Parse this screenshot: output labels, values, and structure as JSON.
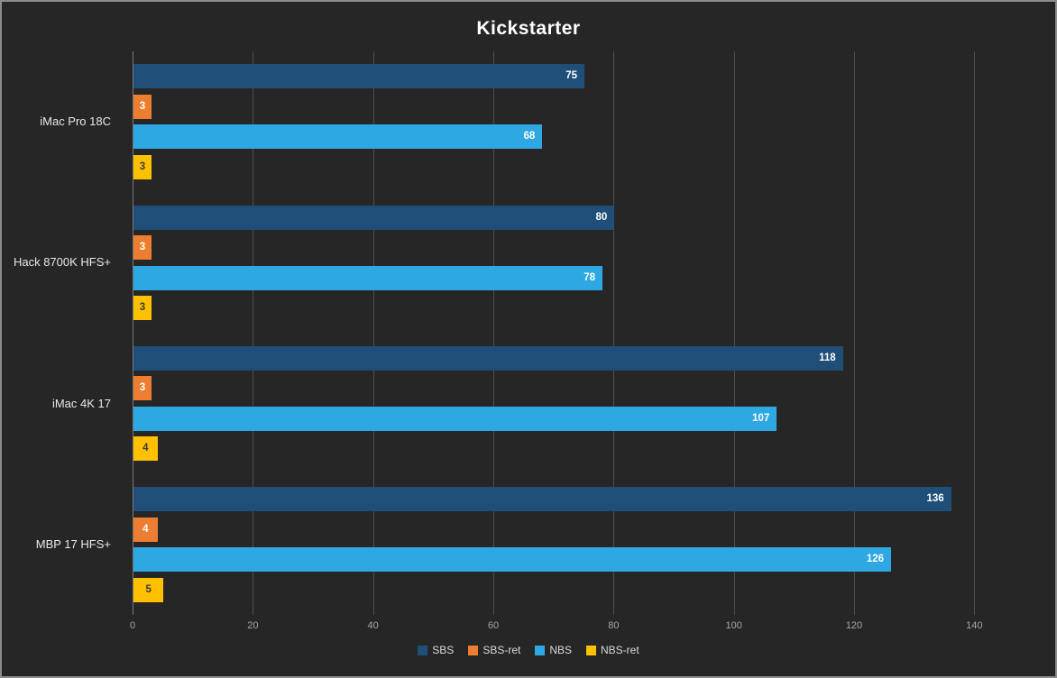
{
  "chart_data": {
    "type": "bar",
    "orientation": "horizontal",
    "title": "Kickstarter",
    "xlabel": "",
    "ylabel": "",
    "categories": [
      "iMac Pro 18C",
      "Hack 8700K HFS+",
      "iMac 4K 17",
      "MBP 17 HFS+"
    ],
    "series": [
      {
        "name": "SBS",
        "color": "#1F4E79",
        "label_color": "#FFFFFF",
        "values": [
          75,
          80,
          118,
          136
        ]
      },
      {
        "name": "SBS-ret",
        "color": "#ED7D31",
        "label_color": "#FFFFFF",
        "values": [
          3,
          3,
          3,
          4
        ]
      },
      {
        "name": "NBS",
        "color": "#2DA8E2",
        "label_color": "#FFFFFF",
        "values": [
          68,
          78,
          107,
          126
        ]
      },
      {
        "name": "NBS-ret",
        "color": "#FFC000",
        "label_color": "#3B3B3B",
        "values": [
          3,
          3,
          4,
          5
        ]
      }
    ],
    "x_ticks": [
      0,
      20,
      40,
      60,
      80,
      100,
      120,
      140
    ],
    "xlim": [
      0,
      150
    ],
    "grid": "vertical",
    "legend_position": "bottom",
    "colors": {
      "background": "#262626",
      "border": "#8C8C8C",
      "gridline": "#4D4D4D",
      "axis_text": "#A6A6A6",
      "category_text": "#E8E8E8",
      "legend_text": "#D9D9D9",
      "title_text": "#FFFFFF"
    }
  }
}
